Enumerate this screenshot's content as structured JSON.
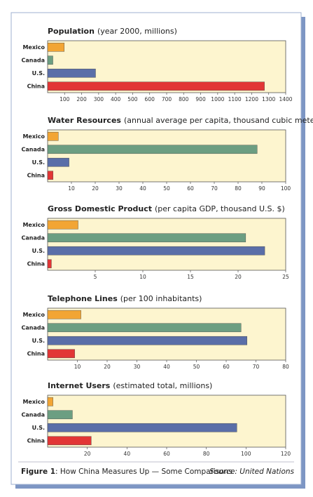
{
  "chart_data": [
    {
      "type": "hbar",
      "title": "Population",
      "subtitle": "(year 2000, millions)",
      "categories": [
        "Mexico",
        "Canada",
        "U.S.",
        "China"
      ],
      "values": [
        98,
        31,
        282,
        1275
      ],
      "colors": [
        "#f2a534",
        "#6c9e82",
        "#5a6ea8",
        "#e23636"
      ],
      "xlim": [
        0,
        1400
      ],
      "xticks": [
        100,
        200,
        300,
        400,
        500,
        600,
        700,
        800,
        900,
        1000,
        1100,
        1200,
        1300,
        1400
      ]
    },
    {
      "type": "hbar",
      "title": "Water Resources",
      "subtitle": "(annual average per capita, thousand cubic meters)",
      "categories": [
        "Mexico",
        "Canada",
        "U.S.",
        "China"
      ],
      "values": [
        4.5,
        88,
        9,
        2.3
      ],
      "colors": [
        "#f2a534",
        "#6c9e82",
        "#5a6ea8",
        "#e23636"
      ],
      "xlim": [
        0,
        100
      ],
      "xticks": [
        10,
        20,
        30,
        40,
        50,
        60,
        70,
        80,
        90,
        100
      ]
    },
    {
      "type": "hbar",
      "title": "Gross Domestic Product",
      "subtitle": "(per capita GDP, thousand U.S. $)",
      "categories": [
        "Mexico",
        "Canada",
        "U.S.",
        "China"
      ],
      "values": [
        3.2,
        20.8,
        22.8,
        0.4
      ],
      "colors": [
        "#f2a534",
        "#6c9e82",
        "#5a6ea8",
        "#e23636"
      ],
      "xlim": [
        0,
        25
      ],
      "xticks": [
        5,
        10,
        15,
        20,
        25
      ]
    },
    {
      "type": "hbar",
      "title": "Telephone Lines",
      "subtitle": "(per 100 inhabitants)",
      "categories": [
        "Mexico",
        "Canada",
        "U.S.",
        "China"
      ],
      "values": [
        11.2,
        65,
        67,
        9.1
      ],
      "colors": [
        "#f2a534",
        "#6c9e82",
        "#5a6ea8",
        "#e23636"
      ],
      "xlim": [
        0,
        80
      ],
      "xticks": [
        10,
        20,
        30,
        40,
        50,
        60,
        70,
        80
      ]
    },
    {
      "type": "hbar",
      "title": "Internet Users",
      "subtitle": "(estimated total, millions)",
      "categories": [
        "Mexico",
        "Canada",
        "U.S.",
        "China"
      ],
      "values": [
        2.7,
        12.5,
        95.4,
        22
      ],
      "colors": [
        "#f2a534",
        "#6c9e82",
        "#5a6ea8",
        "#e23636"
      ],
      "xlim": [
        0,
        120
      ],
      "xticks": [
        20,
        40,
        60,
        80,
        100,
        120
      ]
    }
  ],
  "caption": {
    "label": "Figure 1",
    "text": ": How China Measures Up — Some Comparisons",
    "source": "Source: United Nations"
  }
}
